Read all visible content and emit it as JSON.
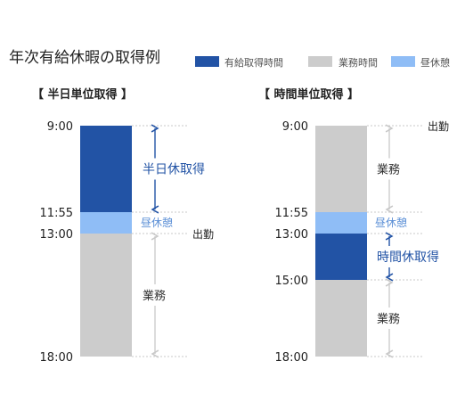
{
  "title": "年次有給休暇の取得例",
  "legend": [
    {
      "key": "paid",
      "label": "有給取得時間",
      "color": "#2253a5"
    },
    {
      "key": "work",
      "label": "業務時間",
      "color": "#cccccc"
    },
    {
      "key": "break",
      "label": "昼休憩",
      "color": "#8fbdf6"
    }
  ],
  "colors": {
    "accent_text": "#2253a5",
    "light_text": "#5b8fd6",
    "arrow_gray": "#cccccc",
    "axis_dot": "#c8c8c8"
  },
  "panels": [
    {
      "id": "half-day",
      "heading": "【 半日単位取得 】",
      "segments": [
        {
          "kind": "paid",
          "start": "9:00",
          "end": "11:55",
          "label": "半日休取得",
          "label_style": "paid"
        },
        {
          "kind": "break",
          "start": "11:55",
          "end": "13:00",
          "label": "昼休憩",
          "label_style": "break"
        },
        {
          "kind": "work",
          "start": "13:00",
          "end": "18:00",
          "label": "業務",
          "label_style": "work"
        }
      ],
      "time_labels": [
        "9:00",
        "11:55",
        "13:00",
        "18:00"
      ],
      "arrival": {
        "time": "13:00",
        "label": "出勤"
      }
    },
    {
      "id": "hourly",
      "heading": "【 時間単位取得 】",
      "segments": [
        {
          "kind": "work",
          "start": "9:00",
          "end": "11:55",
          "label": "業務",
          "label_style": "work"
        },
        {
          "kind": "break",
          "start": "11:55",
          "end": "13:00",
          "label": "昼休憩",
          "label_style": "break"
        },
        {
          "kind": "paid",
          "start": "13:00",
          "end": "15:00",
          "label": "時間休取得",
          "label_style": "paid"
        },
        {
          "kind": "work",
          "start": "15:00",
          "end": "18:00",
          "label": "業務",
          "label_style": "work"
        }
      ],
      "time_labels": [
        "9:00",
        "11:55",
        "13:00",
        "15:00",
        "18:00"
      ],
      "arrival": {
        "time": "9:00",
        "label": "出勤"
      }
    }
  ]
}
